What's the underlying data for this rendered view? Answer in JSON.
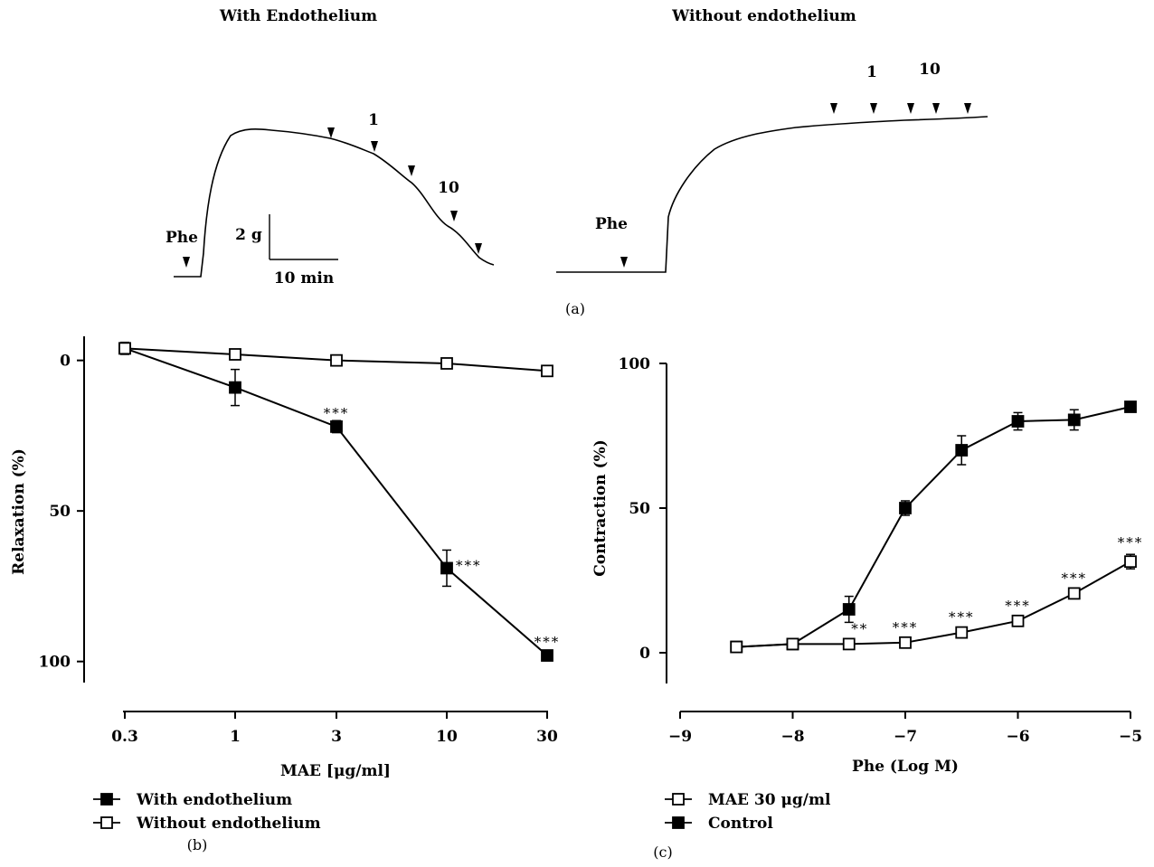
{
  "panel_a": {
    "with_title": "With Endothelium",
    "without_title": "Without endothelium",
    "phe_label": "Phe",
    "dose_1": "1",
    "dose_10": "10",
    "scale_y": "2 g",
    "scale_x": "10 min",
    "caption": "(a)"
  },
  "chart_data": [
    {
      "panel": "(b)",
      "type": "line",
      "categories": [
        "0.3",
        "1",
        "3",
        "10",
        "30"
      ],
      "xlabel": "MAE [μg/ml]",
      "ylabel": "Relaxation (%)",
      "yticks": [
        "0",
        "50",
        "100"
      ],
      "ylim": [
        -8,
        107
      ],
      "y_inverted": true,
      "legend_position": "bottom-left",
      "series": [
        {
          "name": "With endothelium",
          "marker": "filled-square",
          "values": [
            -4,
            9,
            22,
            69,
            98
          ],
          "errors": [
            2,
            6,
            2,
            6,
            1.5
          ],
          "annotations": [
            "",
            "",
            "***",
            "***",
            "***"
          ]
        },
        {
          "name": "Without endothelium",
          "marker": "open-square",
          "values": [
            -4,
            -2,
            0,
            1,
            3.5
          ],
          "errors": [
            1,
            0.5,
            0.5,
            0.5,
            1
          ],
          "annotations": [
            "",
            "",
            "",
            "",
            ""
          ]
        }
      ]
    },
    {
      "panel": "(c)",
      "type": "line",
      "x": [
        -8.5,
        -8,
        -7.5,
        -7,
        -6.5,
        -6,
        -5.5,
        -5
      ],
      "xticks": [
        "−9",
        "−8",
        "−7",
        "−6",
        "−5"
      ],
      "xlim": [
        -9,
        -5
      ],
      "xlabel": "Phe (Log M)",
      "ylabel": "Contraction (%)",
      "yticks": [
        "0",
        "50",
        "100"
      ],
      "ylim": [
        -10,
        100
      ],
      "legend_position": "bottom-left",
      "series": [
        {
          "name": "MAE 30 μg/ml",
          "marker": "open-square",
          "values": [
            2,
            3,
            3,
            3.5,
            7,
            11,
            20.5,
            31.5
          ],
          "errors": [
            0.5,
            0.5,
            0.5,
            0.5,
            0.5,
            0.5,
            1.5,
            2.5
          ],
          "annotations": [
            "",
            "",
            "**",
            "***",
            "***",
            "***",
            "***",
            "***"
          ]
        },
        {
          "name": "Control",
          "marker": "filled-square",
          "values": [
            2,
            3,
            15,
            50,
            70,
            80,
            80.5,
            85
          ],
          "errors": [
            0.5,
            0.5,
            4.5,
            2.5,
            5,
            3,
            3.5,
            1.5
          ],
          "annotations": [
            "",
            "",
            "",
            "",
            "",
            "",
            "",
            ""
          ]
        }
      ]
    }
  ],
  "captions": {
    "b": "(b)",
    "c": "(c)"
  }
}
